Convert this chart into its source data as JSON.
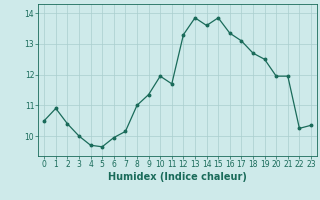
{
  "x": [
    0,
    1,
    2,
    3,
    4,
    5,
    6,
    7,
    8,
    9,
    10,
    11,
    12,
    13,
    14,
    15,
    16,
    17,
    18,
    19,
    20,
    21,
    22,
    23
  ],
  "y": [
    10.5,
    10.9,
    10.4,
    10.0,
    9.7,
    9.65,
    9.95,
    10.15,
    11.0,
    11.35,
    11.95,
    11.7,
    13.3,
    13.85,
    13.6,
    13.85,
    13.35,
    13.1,
    12.7,
    12.5,
    11.95,
    11.95,
    10.25,
    10.35
  ],
  "line_color": "#1a6b5a",
  "marker": "o",
  "markersize": 1.8,
  "linewidth": 0.9,
  "xlabel": "Humidex (Indice chaleur)",
  "xlim": [
    -0.5,
    23.5
  ],
  "ylim": [
    9.35,
    14.3
  ],
  "yticks": [
    10,
    11,
    12,
    13,
    14
  ],
  "xticks": [
    0,
    1,
    2,
    3,
    4,
    5,
    6,
    7,
    8,
    9,
    10,
    11,
    12,
    13,
    14,
    15,
    16,
    17,
    18,
    19,
    20,
    21,
    22,
    23
  ],
  "bg_color": "#ceeaea",
  "grid_color": "#aacece",
  "tick_color": "#1a6b5a",
  "label_color": "#1a6b5a",
  "xlabel_fontsize": 7,
  "tick_fontsize": 5.5
}
